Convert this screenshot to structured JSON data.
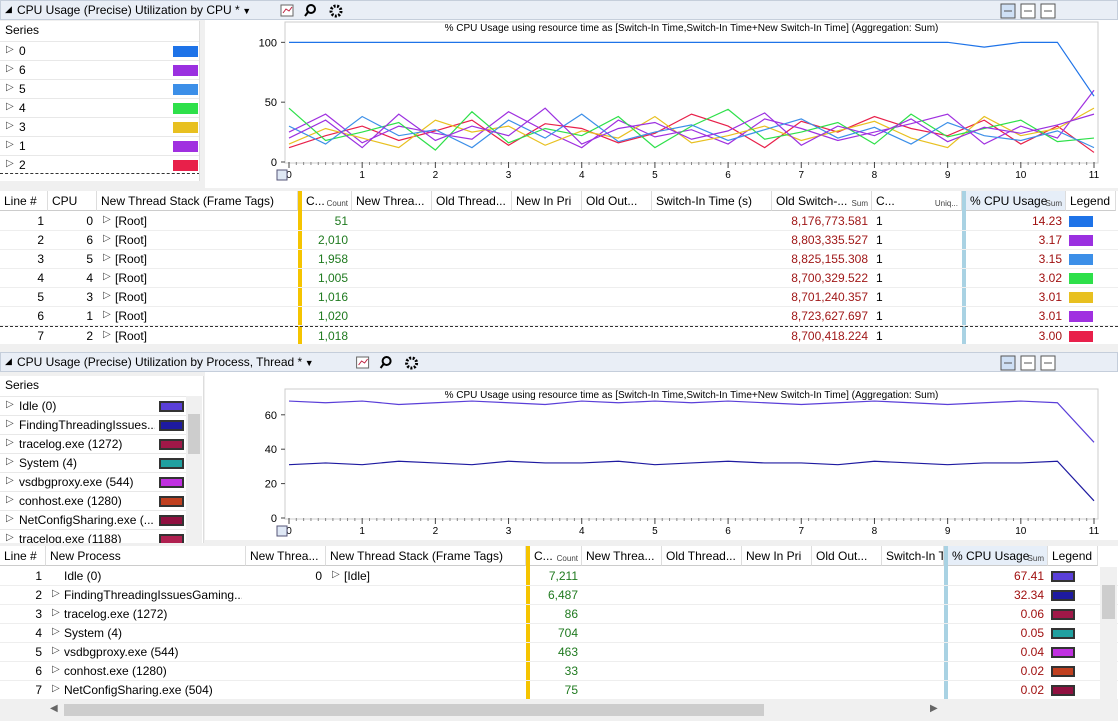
{
  "panels": [
    {
      "title": "CPU Usage (Precise)",
      "view": "Utilization by CPU *",
      "series_header": "Series",
      "series": [
        {
          "name": "0",
          "color": "#1e73e8",
          "values": [
            100,
            100,
            100,
            100,
            100,
            100,
            100,
            100,
            100,
            100,
            100,
            100,
            100,
            100,
            100,
            100,
            100,
            100,
            100,
            96,
            100,
            100,
            55
          ]
        },
        {
          "name": "6",
          "color": "#9b30e0",
          "values": [
            20,
            35,
            12,
            40,
            18,
            30,
            22,
            45,
            15,
            28,
            33,
            19,
            26,
            41,
            14,
            30,
            22,
            36,
            17,
            29,
            24,
            31,
            40
          ]
        },
        {
          "name": "5",
          "color": "#3c8fe8",
          "values": [
            30,
            15,
            38,
            22,
            27,
            12,
            35,
            20,
            40,
            17,
            25,
            31,
            18,
            27,
            36,
            20,
            29,
            15,
            33,
            22,
            18,
            26,
            12
          ]
        },
        {
          "name": "4",
          "color": "#2ee04a",
          "values": [
            45,
            18,
            25,
            33,
            10,
            42,
            16,
            28,
            22,
            38,
            12,
            30,
            44,
            19,
            25,
            33,
            15,
            40,
            21,
            28,
            35,
            17,
            20
          ]
        },
        {
          "name": "3",
          "color": "#e8c020",
          "values": [
            15,
            28,
            20,
            12,
            35,
            25,
            30,
            14,
            26,
            20,
            38,
            16,
            22,
            30,
            18,
            26,
            34,
            20,
            12,
            38,
            22,
            28,
            45
          ]
        },
        {
          "name": "1",
          "color": "#a030e0",
          "values": [
            25,
            40,
            16,
            30,
            24,
            19,
            42,
            26,
            12,
            35,
            21,
            27,
            15,
            36,
            28,
            18,
            25,
            32,
            40,
            15,
            30,
            20,
            60
          ]
        },
        {
          "name": "2",
          "color": "#e8204a",
          "values": [
            12,
            22,
            30,
            18,
            26,
            35,
            14,
            32,
            28,
            16,
            24,
            40,
            30,
            12,
            34,
            25,
            38,
            28,
            22,
            35,
            15,
            30,
            8
          ]
        }
      ],
      "chart": {
        "type": "line",
        "title": "% CPU Usage using resource time as [Switch-In Time,Switch-In Time+New Switch-In Time] (Aggregation: Sum)",
        "x": [
          0,
          0.5,
          1,
          1.5,
          2,
          2.5,
          3,
          3.5,
          4,
          4.5,
          5,
          5.5,
          6,
          6.5,
          7,
          7.5,
          8,
          8.5,
          9,
          9.5,
          10,
          10.5,
          11
        ],
        "xlim": [
          0,
          11
        ],
        "xticks": [
          0,
          1,
          2,
          3,
          4,
          5,
          6,
          7,
          8,
          9,
          10,
          11
        ],
        "ylim": [
          0,
          117
        ],
        "yticks": [
          0,
          50,
          100
        ]
      },
      "table": {
        "columns": [
          {
            "label": "Line #",
            "align": "right"
          },
          {
            "label": "CPU",
            "align": "right"
          },
          {
            "label": "New Thread Stack (Frame Tags)",
            "align": "left"
          },
          {
            "label": "C...",
            "sub": "Count",
            "align": "right",
            "color": "#1f7a1f"
          },
          {
            "label": "New Threa...",
            "align": "left"
          },
          {
            "label": "Old Thread...",
            "align": "left"
          },
          {
            "label": "New In Pri",
            "align": "left"
          },
          {
            "label": "Old Out...",
            "align": "left"
          },
          {
            "label": "Switch-In Time (s)",
            "align": "left"
          },
          {
            "label": "Old Switch-...",
            "sub": "Sum",
            "align": "right",
            "color": "#a01818"
          },
          {
            "label": "C...",
            "sub": "Uniq...",
            "align": "left"
          },
          {
            "label": "% CPU Usage",
            "sub": "Sum",
            "align": "right",
            "color": "#a01010"
          },
          {
            "label": "Legend",
            "align": "left"
          }
        ],
        "rows": [
          {
            "cells": [
              "1",
              "0",
              "[Root]",
              "51",
              null,
              null,
              null,
              null,
              null,
              "8,176,773.581",
              "1",
              "14.23"
            ],
            "color": "#1e73e8",
            "tree": [
              2
            ]
          },
          {
            "cells": [
              "2",
              "6",
              "[Root]",
              "2,010",
              null,
              null,
              null,
              null,
              null,
              "8,803,335.527",
              "1",
              "3.17"
            ],
            "color": "#9b30e0",
            "tree": [
              2
            ]
          },
          {
            "cells": [
              "3",
              "5",
              "[Root]",
              "1,958",
              null,
              null,
              null,
              null,
              null,
              "8,825,155.308",
              "1",
              "3.15"
            ],
            "color": "#3c8fe8",
            "tree": [
              2
            ]
          },
          {
            "cells": [
              "4",
              "4",
              "[Root]",
              "1,005",
              null,
              null,
              null,
              null,
              null,
              "8,700,329.522",
              "1",
              "3.02"
            ],
            "color": "#2ee04a",
            "tree": [
              2
            ]
          },
          {
            "cells": [
              "5",
              "3",
              "[Root]",
              "1,016",
              null,
              null,
              null,
              null,
              null,
              "8,701,240.357",
              "1",
              "3.01"
            ],
            "color": "#e8c020",
            "tree": [
              2
            ]
          },
          {
            "cells": [
              "6",
              "1",
              "[Root]",
              "1,020",
              null,
              null,
              null,
              null,
              null,
              "8,723,627.697",
              "1",
              "3.01"
            ],
            "color": "#a030e0",
            "tree": [
              2
            ]
          },
          {
            "cells": [
              "7",
              "2",
              "[Root]",
              "1,018",
              null,
              null,
              null,
              null,
              null,
              "8,700,418.224",
              "1",
              "3.00"
            ],
            "color": "#e8204a",
            "tree": [
              2
            ]
          }
        ]
      }
    },
    {
      "title": "CPU Usage (Precise)",
      "view": "Utilization by Process, Thread *",
      "series_header": "Series",
      "series": [
        {
          "name": "Idle (0)",
          "color": "#5a3fd8",
          "values": [
            68,
            67,
            68,
            66,
            67,
            68,
            67,
            66,
            68,
            67,
            68,
            67,
            68,
            67,
            66,
            67,
            68,
            67,
            66,
            67,
            68,
            67,
            44
          ]
        },
        {
          "name": "FindingThreadingIssues...",
          "color": "#1e1aa0",
          "values": [
            31,
            32,
            31,
            33,
            32,
            31,
            33,
            32,
            32,
            33,
            31,
            32,
            33,
            32,
            32,
            31,
            33,
            32,
            31,
            32,
            32,
            33,
            10
          ]
        },
        {
          "name": "tracelog.exe (1272)",
          "color": "#a01848"
        },
        {
          "name": "System (4)",
          "color": "#20a0a0"
        },
        {
          "name": "vsdbgproxy.exe (544)",
          "color": "#c030e0"
        },
        {
          "name": "conhost.exe (1280)",
          "color": "#c04020"
        },
        {
          "name": "NetConfigSharing.exe (...",
          "color": "#901040"
        },
        {
          "name": "tracelog.exe (1188)",
          "color": "#b02050"
        }
      ],
      "chart": {
        "type": "line",
        "title": "% CPU Usage using resource time as [Switch-In Time,Switch-In Time+New Switch-In Time] (Aggregation: Sum)",
        "x": [
          0,
          0.5,
          1,
          1.5,
          2,
          2.5,
          3,
          3.5,
          4,
          4.5,
          5,
          5.5,
          6,
          6.5,
          7,
          7.5,
          8,
          8.5,
          9,
          9.5,
          10,
          10.5,
          11
        ],
        "xlim": [
          0,
          11
        ],
        "xticks": [
          0,
          1,
          2,
          3,
          4,
          5,
          6,
          7,
          8,
          9,
          10,
          11
        ],
        "ylim": [
          0,
          75
        ],
        "yticks": [
          0,
          20,
          40,
          60
        ]
      },
      "table": {
        "columns": [
          {
            "label": "Line #",
            "align": "right"
          },
          {
            "label": "New Process",
            "align": "left"
          },
          {
            "label": "New Threa...",
            "align": "right"
          },
          {
            "label": "New Thread Stack (Frame Tags)",
            "align": "left"
          },
          {
            "label": "C...",
            "sub": "Count",
            "align": "right",
            "color": "#1f7a1f"
          },
          {
            "label": "New Threa...",
            "align": "left"
          },
          {
            "label": "Old Thread...",
            "align": "left"
          },
          {
            "label": "New In Pri",
            "align": "left"
          },
          {
            "label": "Old Out...",
            "align": "left"
          },
          {
            "label": "Switch-In T",
            "align": "left"
          },
          {
            "label": "% CPU Usage",
            "sub": "Sum",
            "align": "right",
            "color": "#a01010"
          },
          {
            "label": "Legend",
            "align": "left"
          }
        ],
        "rows": [
          {
            "cells": [
              "1",
              "Idle (0)",
              "0",
              "[Idle]",
              "7,211",
              null,
              null,
              null,
              null,
              null,
              "67.41"
            ],
            "color": "#5a3fd8",
            "tree": [
              3
            ]
          },
          {
            "cells": [
              "2",
              "FindingThreadingIssuesGaming....",
              null,
              null,
              "6,487",
              null,
              null,
              null,
              null,
              null,
              "32.34"
            ],
            "color": "#1e1aa0",
            "tree": [
              1
            ]
          },
          {
            "cells": [
              "3",
              "tracelog.exe (1272)",
              null,
              null,
              "86",
              null,
              null,
              null,
              null,
              null,
              "0.06"
            ],
            "color": "#a01848",
            "tree": [
              1
            ]
          },
          {
            "cells": [
              "4",
              "System (4)",
              null,
              null,
              "704",
              null,
              null,
              null,
              null,
              null,
              "0.05"
            ],
            "color": "#20a0a0",
            "tree": [
              1
            ]
          },
          {
            "cells": [
              "5",
              "vsdbgproxy.exe (544)",
              null,
              null,
              "463",
              null,
              null,
              null,
              null,
              null,
              "0.04"
            ],
            "color": "#c030e0",
            "tree": [
              1
            ]
          },
          {
            "cells": [
              "6",
              "conhost.exe (1280)",
              null,
              null,
              "33",
              null,
              null,
              null,
              null,
              null,
              "0.02"
            ],
            "color": "#c04020",
            "tree": [
              1
            ]
          },
          {
            "cells": [
              "7",
              "NetConfigSharing.exe (504)",
              null,
              null,
              "75",
              null,
              null,
              null,
              null,
              null,
              "0.02"
            ],
            "color": "#901040",
            "tree": [
              1
            ]
          }
        ]
      }
    }
  ]
}
